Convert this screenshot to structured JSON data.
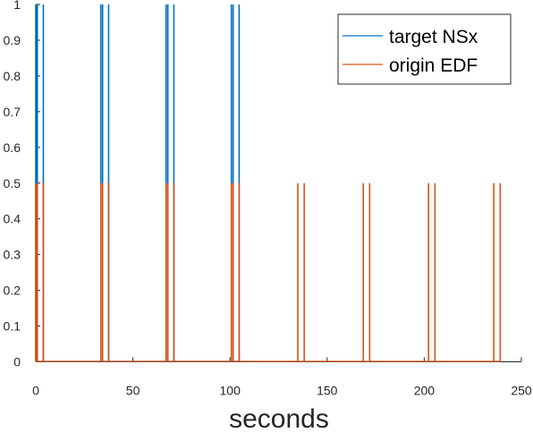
{
  "chart_data": {
    "type": "line",
    "xlabel": "seconds",
    "ylabel": "",
    "xlim": [
      0,
      250
    ],
    "ylim": [
      0,
      1
    ],
    "x_ticks": [
      0,
      50,
      100,
      150,
      200,
      250
    ],
    "y_ticks": [
      0,
      0.1,
      0.2,
      0.3,
      0.4,
      0.5,
      0.6,
      0.7,
      0.8,
      0.9,
      1
    ],
    "grid": false,
    "legend_position": "top-right",
    "series": [
      {
        "name": "target NSx",
        "color": "#0072BD",
        "pulse_level": 1,
        "pulse_x": [
          0,
          0.8,
          3.9,
          33.5,
          34.4,
          37.5,
          67.1,
          68.0,
          71.1,
          100.7,
          101.6,
          104.7
        ]
      },
      {
        "name": "origin EDF",
        "color": "#D95319",
        "pulse_level": 0.5,
        "pulse_x": [
          0,
          0.8,
          3.9,
          33.5,
          34.4,
          37.5,
          67.1,
          68.0,
          71.1,
          100.7,
          101.6,
          104.7,
          134.9,
          138.2,
          168.6,
          171.9,
          202.2,
          205.5,
          235.8,
          239.1
        ]
      }
    ]
  }
}
